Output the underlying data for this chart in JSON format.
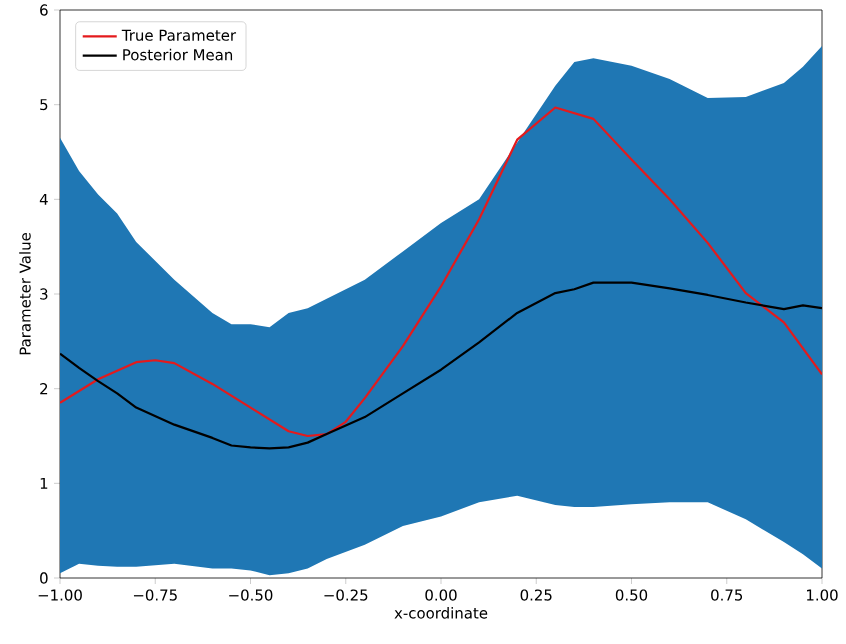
{
  "chart_data": {
    "type": "line",
    "xlabel": "x-coordinate",
    "ylabel": "Parameter Value",
    "xlim": [
      -1,
      1
    ],
    "ylim": [
      0,
      6
    ],
    "xticks": [
      {
        "value": -1,
        "label": "−1.00"
      },
      {
        "value": -0.75,
        "label": "−0.75"
      },
      {
        "value": -0.5,
        "label": "−0.50"
      },
      {
        "value": -0.25,
        "label": "−0.25"
      },
      {
        "value": 0,
        "label": "0.00"
      },
      {
        "value": 0.25,
        "label": "0.25"
      },
      {
        "value": 0.5,
        "label": "0.50"
      },
      {
        "value": 0.75,
        "label": "0.75"
      },
      {
        "value": 1,
        "label": "1.00"
      }
    ],
    "yticks": [
      0,
      1,
      2,
      3,
      4,
      5,
      6
    ],
    "grid": false,
    "legend": "top left",
    "marker": "none",
    "line_style": "solid",
    "series": [
      {
        "name": "True Parameter",
        "color": "#e41a1c",
        "x": [
          -1,
          -0.9,
          -0.8,
          -0.75,
          -0.7,
          -0.6,
          -0.5,
          -0.4,
          -0.35,
          -0.3,
          -0.25,
          -0.2,
          -0.1,
          0,
          0.1,
          0.2,
          0.3,
          0.4,
          0.5,
          0.6,
          0.7,
          0.8,
          0.9,
          1.0
        ],
        "values": [
          1.85,
          2.1,
          2.28,
          2.3,
          2.27,
          2.05,
          1.8,
          1.55,
          1.5,
          1.52,
          1.65,
          1.9,
          2.45,
          3.08,
          3.79,
          4.63,
          4.97,
          4.85,
          4.42,
          4.0,
          3.54,
          3.01,
          2.7,
          2.15
        ]
      },
      {
        "name": "Posterior Mean",
        "color": "#000000",
        "x": [
          -1,
          -0.95,
          -0.9,
          -0.85,
          -0.8,
          -0.7,
          -0.6,
          -0.55,
          -0.5,
          -0.45,
          -0.4,
          -0.35,
          -0.3,
          -0.2,
          -0.1,
          0,
          0.1,
          0.2,
          0.3,
          0.35,
          0.4,
          0.5,
          0.6,
          0.7,
          0.8,
          0.9,
          0.95,
          1.0
        ],
        "values": [
          2.37,
          2.22,
          2.08,
          1.95,
          1.8,
          1.62,
          1.48,
          1.4,
          1.38,
          1.37,
          1.38,
          1.43,
          1.52,
          1.7,
          1.95,
          2.2,
          2.49,
          2.8,
          3.01,
          3.05,
          3.12,
          3.12,
          3.06,
          2.99,
          2.91,
          2.84,
          2.88,
          2.85
        ],
        "upper": [
          4.65,
          4.3,
          4.05,
          3.85,
          3.55,
          3.15,
          2.8,
          2.68,
          2.68,
          2.65,
          2.8,
          2.85,
          2.95,
          3.15,
          3.45,
          3.75,
          4.0,
          4.6,
          5.2,
          5.45,
          5.49,
          5.41,
          5.27,
          5.07,
          5.08,
          5.23,
          5.4,
          5.62
        ],
        "lower": [
          0.05,
          0.15,
          0.13,
          0.12,
          0.12,
          0.15,
          0.1,
          0.1,
          0.08,
          0.03,
          0.05,
          0.1,
          0.2,
          0.35,
          0.55,
          0.65,
          0.8,
          0.87,
          0.77,
          0.75,
          0.75,
          0.78,
          0.8,
          0.8,
          0.62,
          0.38,
          0.25,
          0.1
        ]
      }
    ]
  }
}
